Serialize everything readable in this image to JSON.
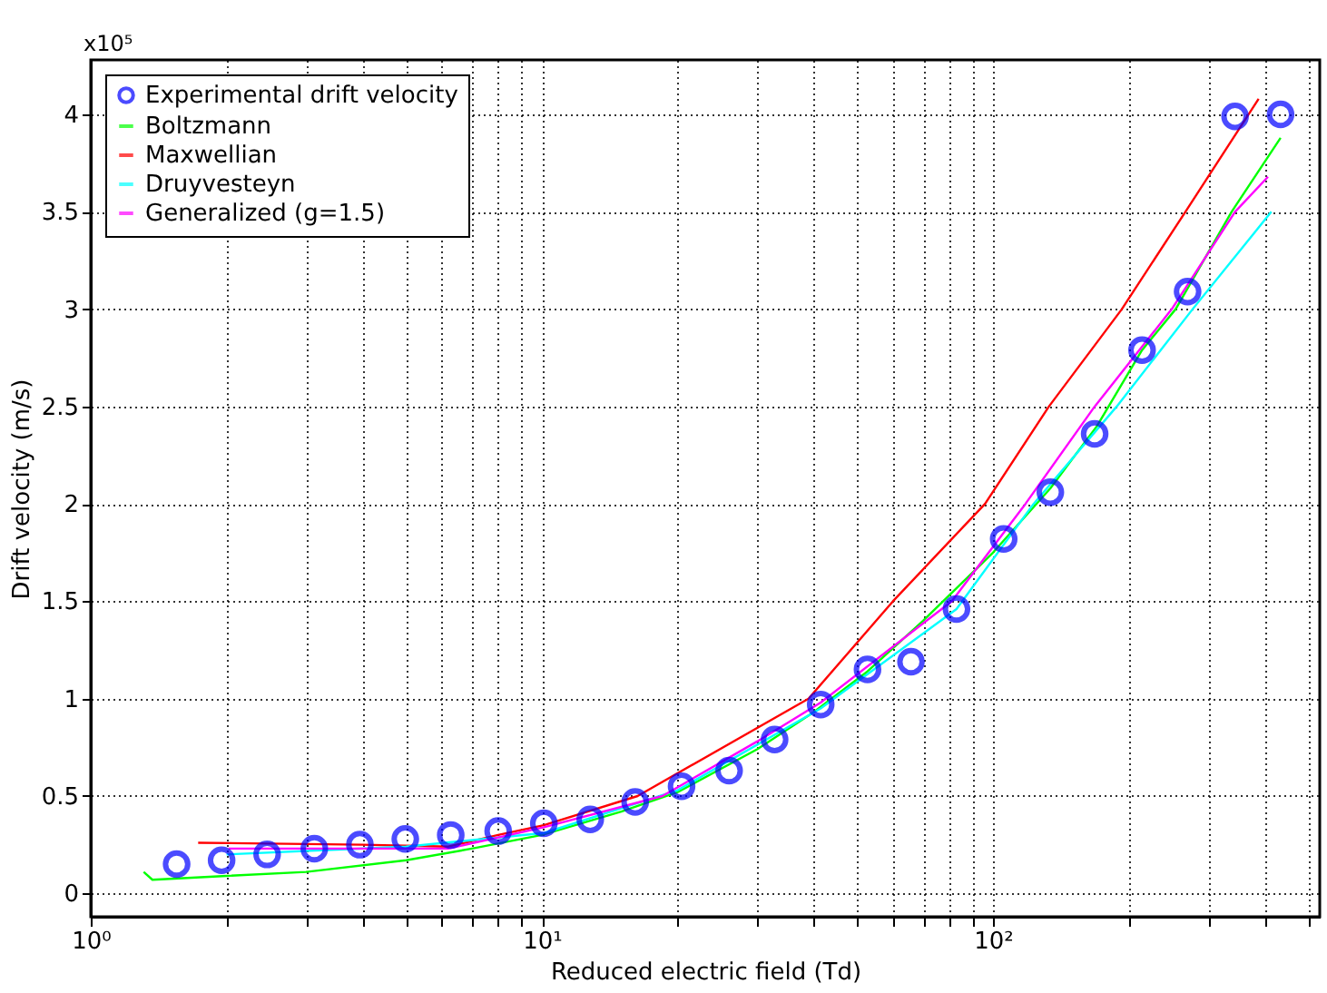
{
  "chart_data": {
    "type": "line",
    "xlabel": "Reduced electric field (Td)",
    "ylabel": "Drift velocity (m/s)",
    "annotations": [
      "x10⁵"
    ],
    "log": "x",
    "grid": true,
    "legend": "top left",
    "line_style": "solid",
    "xlim": [
      1,
      530
    ],
    "ylim": [
      -0.12,
      4.28
    ],
    "xticks": [
      {
        "value": 1,
        "label": "10⁰"
      },
      {
        "value": 2,
        "label": null
      },
      {
        "value": 3,
        "label": null
      },
      {
        "value": 4,
        "label": null
      },
      {
        "value": 5,
        "label": null
      },
      {
        "value": 6,
        "label": null
      },
      {
        "value": 7,
        "label": null
      },
      {
        "value": 8,
        "label": null
      },
      {
        "value": 9,
        "label": null
      },
      {
        "value": 10,
        "label": "10¹"
      },
      {
        "value": 20,
        "label": null
      },
      {
        "value": 30,
        "label": null
      },
      {
        "value": 40,
        "label": null
      },
      {
        "value": 50,
        "label": null
      },
      {
        "value": 60,
        "label": null
      },
      {
        "value": 70,
        "label": null
      },
      {
        "value": 80,
        "label": null
      },
      {
        "value": 90,
        "label": null
      },
      {
        "value": 100,
        "label": "10²"
      },
      {
        "value": 200,
        "label": null
      },
      {
        "value": 300,
        "label": null
      },
      {
        "value": 400,
        "label": null
      },
      {
        "value": 500,
        "label": null
      }
    ],
    "yticks": [
      0,
      0.5,
      1,
      1.5,
      2,
      2.5,
      3,
      3.5,
      4
    ],
    "series": [
      {
        "name": "Experimental drift velocity",
        "type": "scatter",
        "marker": "circle",
        "color": "#0000ff",
        "x": [
          1.55,
          1.95,
          2.46,
          3.13,
          3.95,
          4.98,
          6.28,
          8.0,
          10.1,
          12.8,
          16.1,
          20.4,
          26.0,
          32.8,
          41.5,
          52.7,
          65.8,
          83,
          105.6,
          134,
          168,
          214,
          270,
          344,
          434
        ],
        "values": [
          0.15,
          0.17,
          0.2,
          0.23,
          0.25,
          0.28,
          0.3,
          0.32,
          0.36,
          0.38,
          0.47,
          0.55,
          0.63,
          0.79,
          0.97,
          1.15,
          1.19,
          1.46,
          1.82,
          2.06,
          2.36,
          2.79,
          3.09,
          3.99,
          4.0
        ]
      },
      {
        "name": "Boltzmann",
        "color": "#00ff00",
        "x": [
          1.31,
          1.37,
          2,
          3,
          5,
          7,
          10,
          15,
          20,
          30,
          40,
          52.7,
          70,
          100,
          134,
          170,
          214,
          254,
          338,
          434
        ],
        "values": [
          0.11,
          0.07,
          0.09,
          0.11,
          0.17,
          0.23,
          0.3,
          0.42,
          0.52,
          0.74,
          0.93,
          1.14,
          1.4,
          1.75,
          2.08,
          2.4,
          2.79,
          3.0,
          3.5,
          3.88
        ]
      },
      {
        "name": "Maxwellian",
        "color": "#ff0000",
        "x": [
          1.73,
          4,
          6.2,
          8,
          10.1,
          16.3,
          39,
          60,
          96,
          133,
          193,
          267,
          388
        ],
        "values": [
          0.26,
          0.25,
          0.24,
          0.3,
          0.35,
          0.5,
          1.0,
          1.5,
          2.0,
          2.5,
          3.0,
          3.5,
          4.08
        ]
      },
      {
        "name": "Druyvesteyn",
        "color": "#00ffff",
        "x": [
          2.0,
          5,
          10.1,
          20,
          41.5,
          83,
          123,
          188,
          277,
          414
        ],
        "values": [
          0.2,
          0.24,
          0.31,
          0.53,
          0.95,
          1.46,
          2.0,
          2.5,
          3.0,
          3.5
        ]
      },
      {
        "name": "Generalized (g=1.5)",
        "color": "#ff00ff",
        "x": [
          2.02,
          6.2,
          10.1,
          18.5,
          30,
          41.5,
          81,
          118,
          168,
          249,
          344,
          407
        ],
        "values": [
          0.23,
          0.23,
          0.34,
          0.5,
          0.78,
          0.98,
          1.5,
          2.0,
          2.5,
          3.0,
          3.5,
          3.68
        ]
      }
    ]
  }
}
